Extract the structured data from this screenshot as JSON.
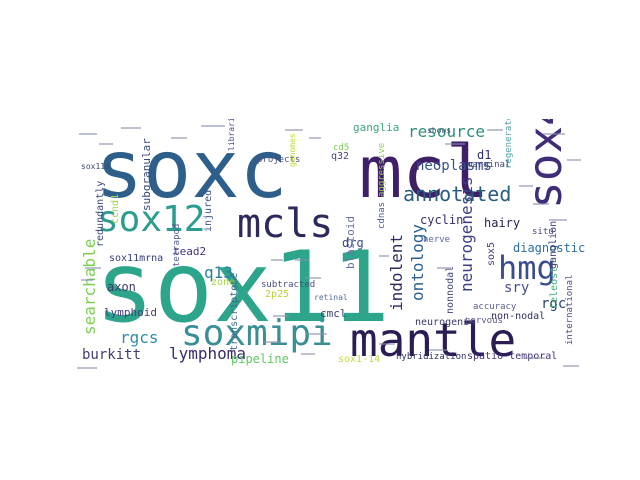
{
  "words": [
    {
      "text": "sox11",
      "color": "#2ca58a"
    },
    {
      "text": "soxc",
      "color": "#2d5f8a"
    },
    {
      "text": "mcl",
      "color": "#3e1f68"
    },
    {
      "text": "sox4",
      "color": "#412c78"
    },
    {
      "text": "mantle",
      "color": "#2b1c54"
    },
    {
      "text": "soxmipi",
      "color": "#3a8f95"
    },
    {
      "text": "sox12",
      "color": "#2a9d8f"
    },
    {
      "text": "mcls",
      "color": "#2c2a5c"
    },
    {
      "text": "hmg",
      "color": "#3b4c8c"
    },
    {
      "text": "annotated",
      "color": "#275e7c"
    },
    {
      "text": "resource",
      "color": "#2c8e7a"
    },
    {
      "text": "neoplasms",
      "color": "#36528a"
    },
    {
      "text": "ontology",
      "color": "#2a5f8f"
    },
    {
      "text": "neurogenesis",
      "color": "#3d3f86"
    },
    {
      "text": "lymphoma",
      "color": "#3a2a6e"
    },
    {
      "text": "searchable",
      "color": "#7ad151"
    },
    {
      "text": "indolent",
      "color": "#2f2a60"
    },
    {
      "text": "q13",
      "color": "#2c7fa0"
    },
    {
      "text": "rgcs",
      "color": "#2f8fa8"
    },
    {
      "text": "burkitt",
      "color": "#3a3f72"
    },
    {
      "text": "sry",
      "color": "#4a4f8c"
    },
    {
      "text": "rgc",
      "color": "#2d3f6c"
    },
    {
      "text": "pipeline",
      "color": "#5ec962"
    },
    {
      "text": "diagnostic",
      "color": "#2e6e9e"
    },
    {
      "text": "hairy",
      "color": "#2a1f50"
    },
    {
      "text": "cyclin",
      "color": "#3a2c6e"
    },
    {
      "text": "d1",
      "color": "#30306a"
    },
    {
      "text": "drg",
      "color": "#3a4a80"
    },
    {
      "text": "axon",
      "color": "#3e3a6c"
    },
    {
      "text": "lymphoid",
      "color": "#473a7c"
    },
    {
      "text": "tead2",
      "color": "#453378"
    },
    {
      "text": "cmcl",
      "color": "#3f3d70"
    },
    {
      "text": "sox5",
      "color": "#403e78"
    },
    {
      "text": "subgranular",
      "color": "#374b7a"
    },
    {
      "text": "transcriptome",
      "color": "#3d6b8e"
    },
    {
      "text": "sox11mrna",
      "color": "#34407a"
    },
    {
      "text": "ganglia",
      "color": "#3ea57a"
    },
    {
      "text": "ganglion",
      "color": "#3f3f75"
    },
    {
      "text": "regenerate",
      "color": "#51a4a8"
    },
    {
      "text": "teleost",
      "color": "#3fb27d"
    },
    {
      "text": "blastoid",
      "color": "#6b73a6"
    },
    {
      "text": "injured",
      "color": "#3c5588"
    },
    {
      "text": "2p25",
      "color": "#b7d433"
    },
    {
      "text": "zone",
      "color": "#a6d63e"
    },
    {
      "text": "q32",
      "color": "#3d4678"
    },
    {
      "text": "sox1-14",
      "color": "#c1dd3a"
    },
    {
      "text": "non-nodal",
      "color": "#30305a"
    },
    {
      "text": "hybridization",
      "color": "#2f3068"
    },
    {
      "text": "spatio-temporal",
      "color": "#45307a"
    },
    {
      "text": "nonnodal",
      "color": "#45467c"
    },
    {
      "text": "marginal",
      "color": "#45467c"
    },
    {
      "text": "aggressive",
      "color": "#8fd14f"
    },
    {
      "text": "cdnas",
      "color": "#4a5c90"
    },
    {
      "text": "nerve",
      "color": "#5c6ba0"
    },
    {
      "text": "neurogenic",
      "color": "#3a3a6a"
    },
    {
      "text": "accuracy",
      "color": "#5a5c90"
    },
    {
      "text": "nervous",
      "color": "#5a5c90"
    },
    {
      "text": "international",
      "color": "#4c4f80"
    },
    {
      "text": "ccnd1",
      "color": "#a0d64b"
    },
    {
      "text": "redundantly",
      "color": "#3c4a7a"
    },
    {
      "text": "tetrapod",
      "color": "#4f5d90"
    },
    {
      "text": "projects",
      "color": "#4f4f7f"
    },
    {
      "text": "libraries",
      "color": "#4a4f80"
    },
    {
      "text": "subtracted",
      "color": "#4a4f80"
    },
    {
      "text": "retinal",
      "color": "#5a6f99"
    },
    {
      "text": "situ",
      "color": "#4a4a7a"
    },
    {
      "text": "cd5",
      "color": "#7ad151"
    },
    {
      "text": "sox11a",
      "color": "#3a4a7a"
    },
    {
      "text": "genomes",
      "color": "#b5dd2b"
    },
    {
      "text": "shows",
      "color": "#4a4f80"
    }
  ]
}
